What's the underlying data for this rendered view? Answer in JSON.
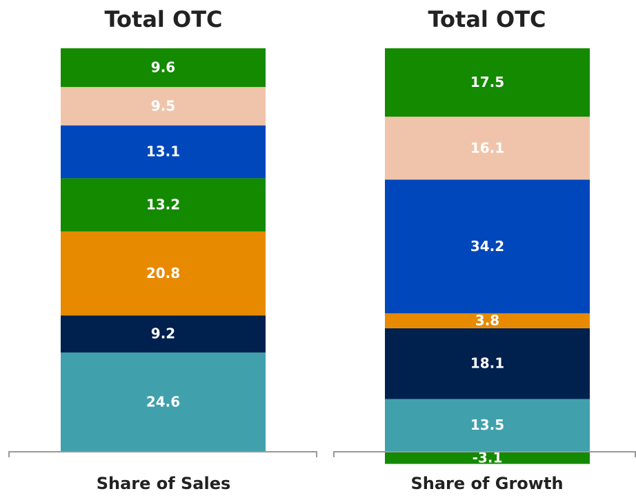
{
  "chart_data": [
    {
      "type": "bar",
      "title": "Total OTC",
      "xlabel": "Share of Sales",
      "values": [
        24.6,
        9.2,
        20.8,
        13.2,
        13.1,
        9.5,
        9.6
      ],
      "colors": [
        "#40a0ac",
        "#00204e",
        "#e88a00",
        "#138a00",
        "#0047bb",
        "#f0c4aa",
        "#138a00"
      ]
    },
    {
      "type": "bar",
      "title": "Total OTC",
      "xlabel": "Share of Growth",
      "values": [
        -3.1,
        13.5,
        18.1,
        3.8,
        34.2,
        16.1,
        17.5
      ],
      "colors": [
        "#138a00",
        "#40a0ac",
        "#00204e",
        "#e88a00",
        "#0047bb",
        "#f0c4aa",
        "#138a00"
      ]
    }
  ]
}
